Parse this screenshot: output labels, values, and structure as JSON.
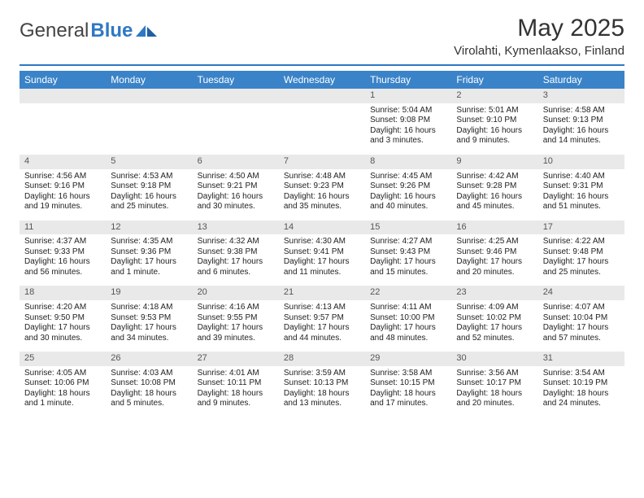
{
  "brand": {
    "general": "General",
    "blue": "Blue"
  },
  "title": "May 2025",
  "location": "Virolahti, Kymenlaakso, Finland",
  "colors": {
    "accent": "#3a83c8",
    "rule": "#2f78c5",
    "daybg": "#e9e9e9",
    "text": "#222"
  },
  "day_headers": [
    "Sunday",
    "Monday",
    "Tuesday",
    "Wednesday",
    "Thursday",
    "Friday",
    "Saturday"
  ],
  "first_weekday": 4,
  "days": [
    {
      "n": 1,
      "sr": "5:04 AM",
      "ss": "9:08 PM",
      "dl": "16 hours and 3 minutes."
    },
    {
      "n": 2,
      "sr": "5:01 AM",
      "ss": "9:10 PM",
      "dl": "16 hours and 9 minutes."
    },
    {
      "n": 3,
      "sr": "4:58 AM",
      "ss": "9:13 PM",
      "dl": "16 hours and 14 minutes."
    },
    {
      "n": 4,
      "sr": "4:56 AM",
      "ss": "9:16 PM",
      "dl": "16 hours and 19 minutes."
    },
    {
      "n": 5,
      "sr": "4:53 AM",
      "ss": "9:18 PM",
      "dl": "16 hours and 25 minutes."
    },
    {
      "n": 6,
      "sr": "4:50 AM",
      "ss": "9:21 PM",
      "dl": "16 hours and 30 minutes."
    },
    {
      "n": 7,
      "sr": "4:48 AM",
      "ss": "9:23 PM",
      "dl": "16 hours and 35 minutes."
    },
    {
      "n": 8,
      "sr": "4:45 AM",
      "ss": "9:26 PM",
      "dl": "16 hours and 40 minutes."
    },
    {
      "n": 9,
      "sr": "4:42 AM",
      "ss": "9:28 PM",
      "dl": "16 hours and 45 minutes."
    },
    {
      "n": 10,
      "sr": "4:40 AM",
      "ss": "9:31 PM",
      "dl": "16 hours and 51 minutes."
    },
    {
      "n": 11,
      "sr": "4:37 AM",
      "ss": "9:33 PM",
      "dl": "16 hours and 56 minutes."
    },
    {
      "n": 12,
      "sr": "4:35 AM",
      "ss": "9:36 PM",
      "dl": "17 hours and 1 minute."
    },
    {
      "n": 13,
      "sr": "4:32 AM",
      "ss": "9:38 PM",
      "dl": "17 hours and 6 minutes."
    },
    {
      "n": 14,
      "sr": "4:30 AM",
      "ss": "9:41 PM",
      "dl": "17 hours and 11 minutes."
    },
    {
      "n": 15,
      "sr": "4:27 AM",
      "ss": "9:43 PM",
      "dl": "17 hours and 15 minutes."
    },
    {
      "n": 16,
      "sr": "4:25 AM",
      "ss": "9:46 PM",
      "dl": "17 hours and 20 minutes."
    },
    {
      "n": 17,
      "sr": "4:22 AM",
      "ss": "9:48 PM",
      "dl": "17 hours and 25 minutes."
    },
    {
      "n": 18,
      "sr": "4:20 AM",
      "ss": "9:50 PM",
      "dl": "17 hours and 30 minutes."
    },
    {
      "n": 19,
      "sr": "4:18 AM",
      "ss": "9:53 PM",
      "dl": "17 hours and 34 minutes."
    },
    {
      "n": 20,
      "sr": "4:16 AM",
      "ss": "9:55 PM",
      "dl": "17 hours and 39 minutes."
    },
    {
      "n": 21,
      "sr": "4:13 AM",
      "ss": "9:57 PM",
      "dl": "17 hours and 44 minutes."
    },
    {
      "n": 22,
      "sr": "4:11 AM",
      "ss": "10:00 PM",
      "dl": "17 hours and 48 minutes."
    },
    {
      "n": 23,
      "sr": "4:09 AM",
      "ss": "10:02 PM",
      "dl": "17 hours and 52 minutes."
    },
    {
      "n": 24,
      "sr": "4:07 AM",
      "ss": "10:04 PM",
      "dl": "17 hours and 57 minutes."
    },
    {
      "n": 25,
      "sr": "4:05 AM",
      "ss": "10:06 PM",
      "dl": "18 hours and 1 minute."
    },
    {
      "n": 26,
      "sr": "4:03 AM",
      "ss": "10:08 PM",
      "dl": "18 hours and 5 minutes."
    },
    {
      "n": 27,
      "sr": "4:01 AM",
      "ss": "10:11 PM",
      "dl": "18 hours and 9 minutes."
    },
    {
      "n": 28,
      "sr": "3:59 AM",
      "ss": "10:13 PM",
      "dl": "18 hours and 13 minutes."
    },
    {
      "n": 29,
      "sr": "3:58 AM",
      "ss": "10:15 PM",
      "dl": "18 hours and 17 minutes."
    },
    {
      "n": 30,
      "sr": "3:56 AM",
      "ss": "10:17 PM",
      "dl": "18 hours and 20 minutes."
    },
    {
      "n": 31,
      "sr": "3:54 AM",
      "ss": "10:19 PM",
      "dl": "18 hours and 24 minutes."
    }
  ],
  "labels": {
    "sunrise": "Sunrise:",
    "sunset": "Sunset:",
    "daylight": "Daylight:"
  }
}
